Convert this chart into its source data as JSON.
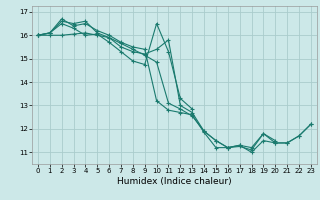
{
  "title": "",
  "xlabel": "Humidex (Indice chaleur)",
  "background_color": "#cce8e8",
  "grid_color": "#aacccc",
  "line_color": "#1a7a6e",
  "xlim": [
    -0.5,
    23.5
  ],
  "ylim": [
    10.5,
    17.25
  ],
  "yticks": [
    11,
    12,
    13,
    14,
    15,
    16,
    17
  ],
  "xticks": [
    0,
    1,
    2,
    3,
    4,
    5,
    6,
    7,
    8,
    9,
    10,
    11,
    12,
    13,
    14,
    15,
    16,
    17,
    18,
    19,
    20,
    21,
    22,
    23
  ],
  "series": [
    [
      16.0,
      16.1,
      16.6,
      16.5,
      16.6,
      16.1,
      15.9,
      15.5,
      15.3,
      15.2,
      15.4,
      15.8,
      13.0,
      12.7,
      11.9,
      11.5,
      11.2,
      11.3,
      11.0,
      11.5,
      11.4,
      11.4,
      11.7,
      12.2
    ],
    [
      16.0,
      16.1,
      16.7,
      16.4,
      16.5,
      16.2,
      16.0,
      15.7,
      15.5,
      15.4,
      13.2,
      12.8,
      12.7,
      12.6,
      11.85,
      11.2,
      11.2,
      11.3,
      11.2,
      11.8,
      11.5,
      null,
      null,
      null
    ],
    [
      16.0,
      16.1,
      16.5,
      16.3,
      16.0,
      16.05,
      15.7,
      15.3,
      14.9,
      14.75,
      16.5,
      15.3,
      13.3,
      12.85,
      null,
      null,
      null,
      null,
      null,
      null,
      null,
      null,
      null,
      null
    ],
    [
      16.0,
      16.0,
      16.0,
      16.05,
      16.1,
      16.0,
      15.9,
      15.65,
      15.4,
      15.15,
      14.85,
      13.1,
      12.85,
      12.55,
      11.9,
      11.5,
      11.2,
      11.25,
      11.1,
      11.8,
      11.4,
      11.4,
      11.7,
      12.2
    ]
  ],
  "font_size_ticks": 5,
  "font_size_xlabel": 6.5
}
